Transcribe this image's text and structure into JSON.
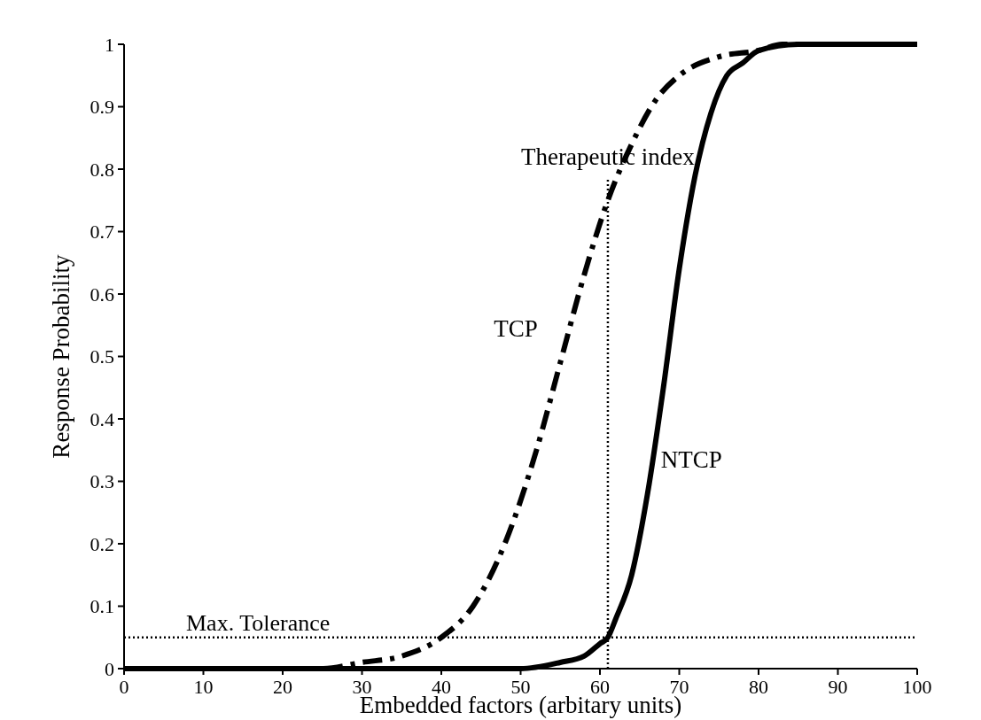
{
  "chart_data": {
    "type": "line",
    "xlabel": "Embedded factors (arbitary units)",
    "ylabel": "Response Probability",
    "xlim": [
      0,
      100
    ],
    "ylim": [
      0,
      1
    ],
    "xticks": [
      0,
      10,
      20,
      30,
      40,
      50,
      60,
      70,
      80,
      90,
      100
    ],
    "yticks": [
      0,
      0.1,
      0.2,
      0.3,
      0.4,
      0.5,
      0.6,
      0.7,
      0.8,
      0.9,
      1
    ],
    "grid": false,
    "marker": "none",
    "series": [
      {
        "name": "TCP",
        "color": "#000000",
        "line_style": "dashed",
        "x": [
          0,
          10,
          20,
          25,
          30,
          35,
          40,
          44,
          48,
          52,
          55,
          58,
          61,
          64,
          67,
          70,
          75,
          80,
          83,
          90,
          100
        ],
        "values": [
          0,
          0,
          0,
          0,
          0.01,
          0.02,
          0.05,
          0.1,
          0.2,
          0.35,
          0.49,
          0.63,
          0.75,
          0.84,
          0.91,
          0.95,
          0.98,
          0.99,
          1,
          1,
          1
        ]
      },
      {
        "name": "NTCP",
        "color": "#000000",
        "line_style": "solid",
        "x": [
          0,
          20,
          40,
          50,
          55,
          58,
          60,
          61,
          62,
          64,
          66,
          68,
          70,
          72,
          74,
          76,
          78,
          80,
          85,
          90,
          100
        ],
        "values": [
          0,
          0,
          0,
          0,
          0.01,
          0.02,
          0.04,
          0.05,
          0.08,
          0.15,
          0.28,
          0.45,
          0.64,
          0.79,
          0.89,
          0.95,
          0.97,
          0.99,
          1,
          1,
          1
        ]
      }
    ],
    "ref_lines": [
      {
        "axis": "y",
        "value": 0.05,
        "label": "Max. Tolerance",
        "line_style": "dotted",
        "color": "#000000"
      },
      {
        "axis": "x",
        "value": 61,
        "label": "Therapeutic index",
        "line_style": "dotted",
        "color": "#000000"
      }
    ]
  }
}
